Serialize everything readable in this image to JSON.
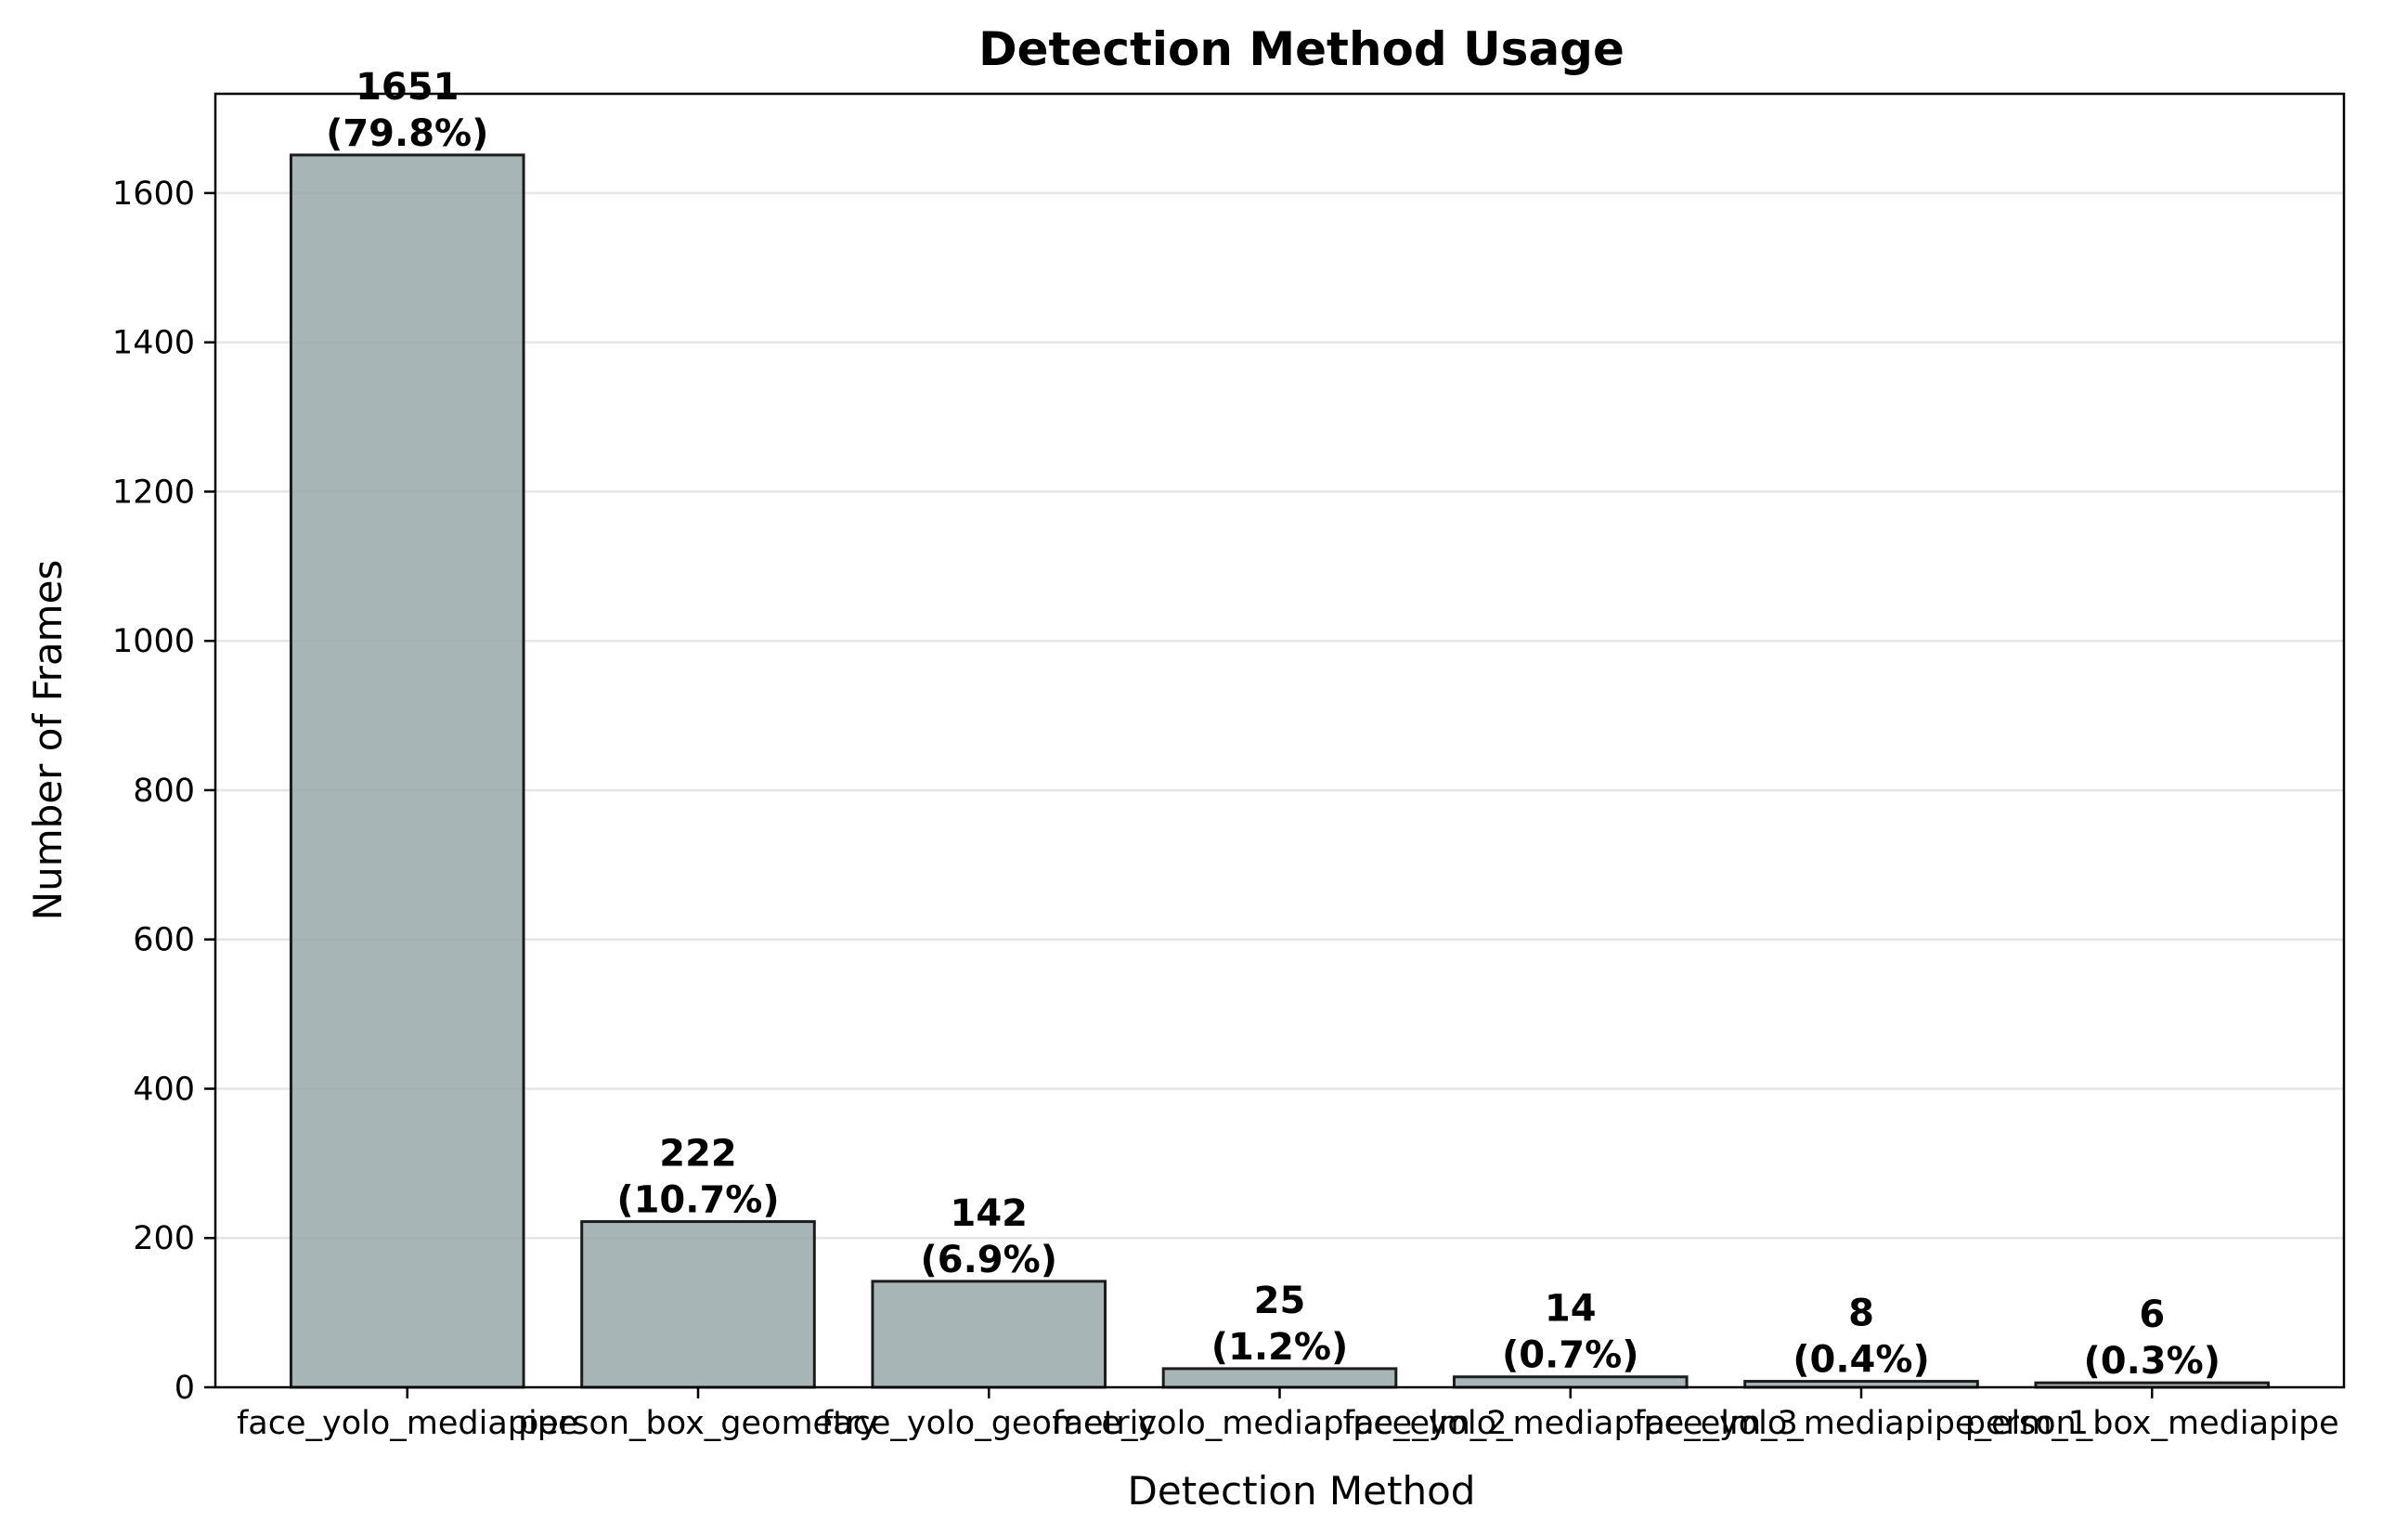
{
  "chart_data": {
    "type": "bar",
    "title": "Detection Method Usage",
    "xlabel": "Detection Method",
    "ylabel": "Number of Frames",
    "categories": [
      "face_yolo_mediapipe",
      "person_box_geometry",
      "face_yolo_geometric",
      "face_yolo_mediapipe_elm_2",
      "face_yolo_mediapipe_elm_3",
      "face_yolo_mediapipe_elm_1",
      "person_box_mediapipe"
    ],
    "values": [
      1651,
      222,
      142,
      25,
      14,
      8,
      6
    ],
    "value_labels": [
      "1651",
      "222",
      "142",
      "25",
      "14",
      "8",
      "6"
    ],
    "percent_labels": [
      "(79.8%)",
      "(10.7%)",
      "(6.9%)",
      "(1.2%)",
      "(0.7%)",
      "(0.4%)",
      "(0.3%)"
    ],
    "ylim": [
      0,
      1733
    ],
    "yticks": [
      0,
      200,
      400,
      600,
      800,
      1000,
      1200,
      1400,
      1600
    ],
    "grid": "y",
    "colors": {
      "bar": "#95a5a6",
      "edge": "#1c1c1c",
      "grid": "#e6e6e6"
    }
  }
}
